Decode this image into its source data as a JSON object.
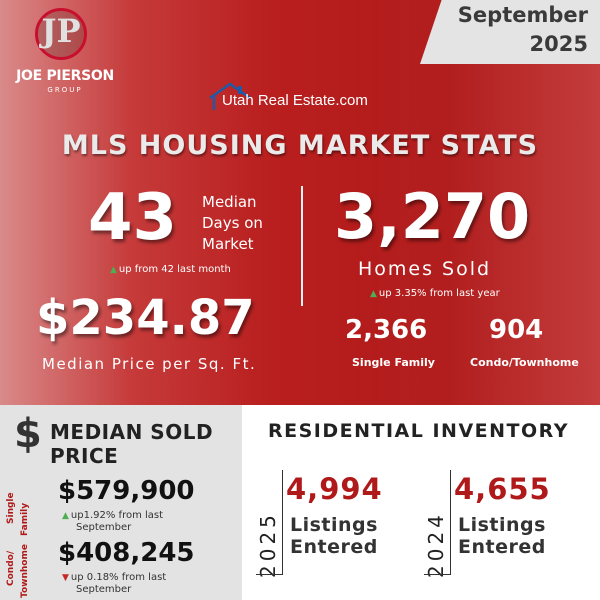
{
  "header": {
    "month": "September",
    "year": "2025"
  },
  "logo": {
    "monogram": "JP",
    "name": "JOE PIERSON",
    "group": "GROUP"
  },
  "partner": {
    "name": "Utah Real Estate.com"
  },
  "title": "MLS HOUSING MARKET STATS",
  "days_on_market": {
    "value": "43",
    "label_line1": "Median",
    "label_line2": "Days on",
    "label_line3": "Market",
    "note": "up from 42 last month"
  },
  "price_per_sqft": {
    "value": "$234.87",
    "label": "Median Price per Sq. Ft."
  },
  "homes_sold": {
    "value": "3,270",
    "label": "Homes Sold",
    "note": "up 3.35% from last year",
    "single_family": {
      "value": "2,366",
      "label": "Single Family"
    },
    "condo": {
      "value": "904",
      "label": "Condo/Townhome"
    }
  },
  "median_sold_price": {
    "icon": "$",
    "title_line1": "MEDIAN SOLD",
    "title_line2": "PRICE",
    "single_family": {
      "label_line1": "Single",
      "label_line2": "Family",
      "value": "$579,900",
      "note_line1": "up1.92% from last",
      "note_line2": "September"
    },
    "condo": {
      "label_line1": "Condo/",
      "label_line2": "Townhome",
      "value": "$408,245",
      "note_line1": "up 0.18% from last",
      "note_line2": "September"
    }
  },
  "residential_inventory": {
    "title": "RESIDENTIAL INVENTORY",
    "y2025": {
      "year": "2025",
      "value": "4,994",
      "label_line1": "Listings",
      "label_line2": "Entered"
    },
    "y2024": {
      "year": "2024",
      "value": "4,655",
      "label_line1": "Listings",
      "label_line2": "Entered"
    }
  },
  "colors": {
    "brand_red": "#b01919",
    "up": "#4caf50",
    "down": "#c62828",
    "gray_panel": "#e3e3e3"
  }
}
